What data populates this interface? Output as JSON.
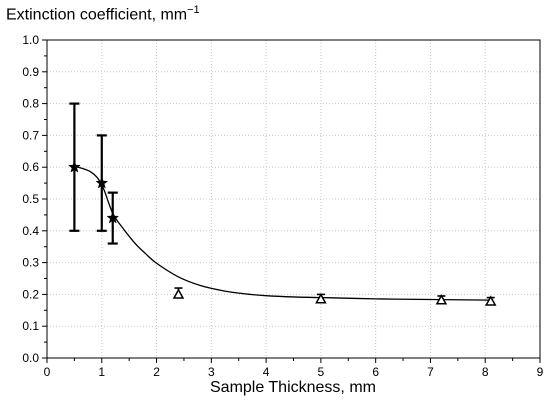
{
  "chart_data": {
    "type": "scatter",
    "title": "",
    "ylabel": {
      "text": "Extinction coefficient, mm",
      "superscript": "−1"
    },
    "xlabel": "Sample Thickness, mm",
    "xlim": [
      0,
      9
    ],
    "ylim": [
      0.0,
      1.0
    ],
    "x_ticks": [
      "0",
      "1",
      "2",
      "3",
      "4",
      "5",
      "6",
      "7",
      "8",
      "9"
    ],
    "y_ticks": [
      "0.0",
      "0.1",
      "0.2",
      "0.3",
      "0.4",
      "0.5",
      "0.6",
      "0.7",
      "0.8",
      "0.9",
      "1.0"
    ],
    "grid": true,
    "series": [
      {
        "marker": "star",
        "color": "#000000",
        "points": [
          {
            "x": 0.5,
            "y": 0.6,
            "err_low": 0.4,
            "err_high": 0.8
          },
          {
            "x": 1.0,
            "y": 0.55,
            "err_low": 0.4,
            "err_high": 0.7
          },
          {
            "x": 1.2,
            "y": 0.44,
            "err_low": 0.36,
            "err_high": 0.52
          }
        ]
      },
      {
        "marker": "triangle",
        "color": "#000000",
        "points": [
          {
            "x": 2.4,
            "y": 0.2,
            "err_low": 0.19,
            "err_high": 0.22
          },
          {
            "x": 5.0,
            "y": 0.185,
            "err_low": 0.175,
            "err_high": 0.2
          },
          {
            "x": 7.2,
            "y": 0.182,
            "err_low": 0.172,
            "err_high": 0.195
          },
          {
            "x": 8.1,
            "y": 0.178,
            "err_low": 0.168,
            "err_high": 0.19
          }
        ]
      }
    ],
    "fit_curve": {
      "x": [
        0.5,
        0.8,
        1.0,
        1.2,
        1.4,
        1.6,
        1.8,
        2.0,
        2.4,
        2.8,
        3.2,
        3.6,
        4.0,
        4.5,
        5.0,
        6.0,
        7.0,
        8.1
      ],
      "y": [
        0.603,
        0.585,
        0.545,
        0.455,
        0.405,
        0.362,
        0.328,
        0.298,
        0.255,
        0.228,
        0.212,
        0.202,
        0.196,
        0.192,
        0.19,
        0.186,
        0.184,
        0.182
      ]
    }
  }
}
